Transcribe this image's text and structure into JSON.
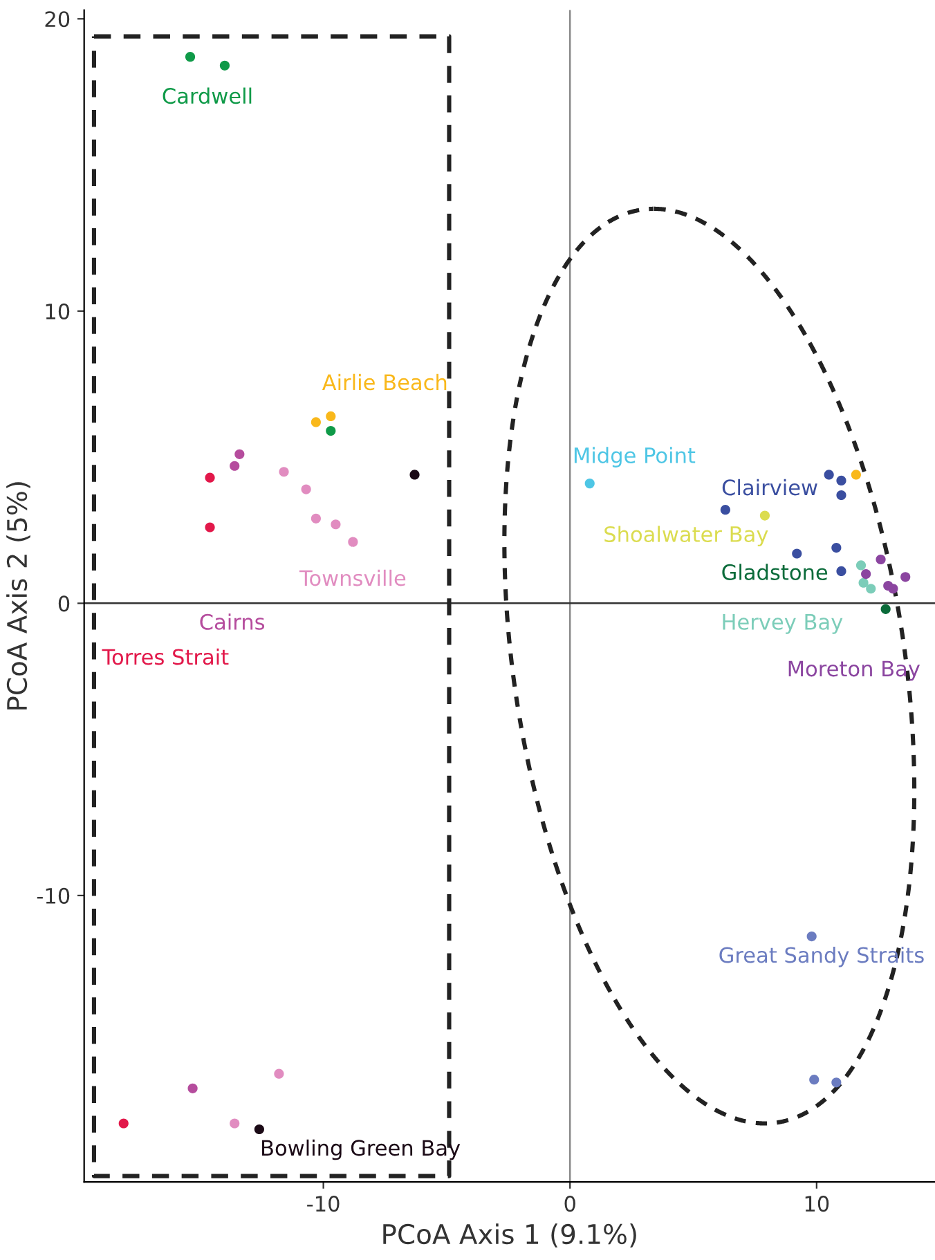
{
  "chart_data": {
    "type": "scatter",
    "xlabel": "PCoA Axis 1 (9.1%)",
    "ylabel": "PCoA Axis 2 (5%)",
    "xlim": [
      -19.7,
      14.8
    ],
    "ylim": [
      -19.8,
      20.3
    ],
    "xticks": [
      -10,
      0,
      10
    ],
    "yticks": [
      -10,
      0,
      10,
      20
    ],
    "grid": false,
    "legend": false,
    "marker": "circle",
    "ref_lines": [
      {
        "axis": "x",
        "value": 0,
        "color": "#8a8a8a"
      },
      {
        "axis": "y",
        "value": 0,
        "color": "#333333"
      }
    ],
    "series": [
      {
        "name": "Cardwell",
        "color": "#0f9a48",
        "x": [
          -15.4,
          -14.0,
          -9.7
        ],
        "values": [
          18.7,
          18.4,
          5.9
        ]
      },
      {
        "name": "Airlie Beach",
        "color": "#f9b81b",
        "x": [
          -10.3,
          -9.7,
          11.6
        ],
        "values": [
          6.2,
          6.4,
          4.4
        ]
      },
      {
        "name": "Townsville",
        "color": "#e18cc0",
        "x": [
          -11.6,
          -10.7,
          -10.3,
          -9.5,
          -8.8,
          -11.8,
          -13.6
        ],
        "values": [
          4.5,
          3.9,
          2.9,
          2.7,
          2.1,
          -16.1,
          -17.8
        ]
      },
      {
        "name": "Cairns",
        "color": "#b54c9d",
        "x": [
          -13.4,
          -13.6,
          -15.3
        ],
        "values": [
          5.1,
          4.7,
          -16.6
        ]
      },
      {
        "name": "Torres Strait",
        "color": "#e2184a",
        "x": [
          -14.6,
          -14.6,
          -18.1
        ],
        "values": [
          4.3,
          2.6,
          -17.8
        ]
      },
      {
        "name": "Bowling Green Bay",
        "color": "#1b0a16",
        "x": [
          -6.3,
          -12.6
        ],
        "values": [
          4.4,
          -18.0
        ]
      },
      {
        "name": "Midge Point",
        "color": "#4ec6e5",
        "x": [
          0.8
        ],
        "values": [
          4.1
        ]
      },
      {
        "name": "Clairview",
        "color": "#3a4ea0",
        "x": [
          10.5,
          11.0,
          11.0,
          6.3,
          9.2,
          10.8,
          11.0
        ],
        "values": [
          4.4,
          4.2,
          3.7,
          3.2,
          1.7,
          1.9,
          1.1
        ]
      },
      {
        "name": "Shoalwater Bay",
        "color": "#dbdc4f",
        "x": [
          7.9
        ],
        "values": [
          3.0
        ]
      },
      {
        "name": "Gladstone",
        "color": "#0b6b3a",
        "x": [
          12.8
        ],
        "values": [
          -0.2
        ]
      },
      {
        "name": "Hervey Bay",
        "color": "#7ccdb9",
        "x": [
          11.8,
          11.9,
          12.2
        ],
        "values": [
          1.3,
          0.7,
          0.5
        ]
      },
      {
        "name": "Moreton Bay",
        "color": "#8b45a0",
        "x": [
          12.6,
          12.0,
          12.9,
          13.1,
          13.6
        ],
        "values": [
          1.5,
          1.0,
          0.6,
          0.5,
          0.9
        ]
      },
      {
        "name": "Great Sandy Straits",
        "color": "#6b7cc0",
        "x": [
          9.8,
          9.9,
          10.8
        ],
        "values": [
          -11.4,
          -16.3,
          -16.4
        ]
      }
    ]
  }
}
